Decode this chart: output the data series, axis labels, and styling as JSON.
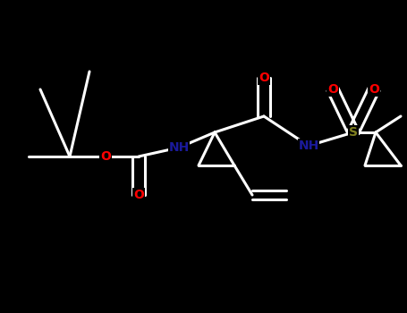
{
  "background": "#000000",
  "line_color": "#ffffff",
  "atom_colors": {
    "O": "#ff0000",
    "N": "#1a1a9c",
    "S": "#808020",
    "C": "#ffffff"
  },
  "lw": 2.2,
  "fs": 10,
  "fig_width": 4.55,
  "fig_height": 3.5,
  "dpi": 100
}
